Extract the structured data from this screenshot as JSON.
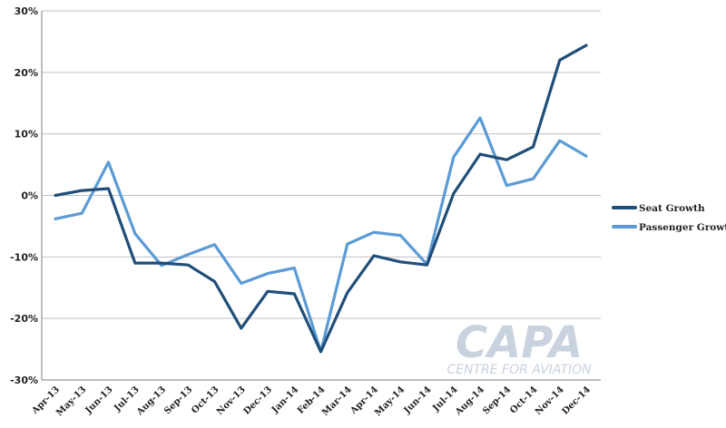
{
  "watermark": {
    "title": "CAPA",
    "subtitle": "CENTRE FOR AVIATION"
  },
  "chart_data": {
    "type": "line",
    "title": "",
    "xlabel": "",
    "ylabel": "",
    "categories": [
      "Apr-13",
      "May-13",
      "Jun-13",
      "Jul-13",
      "Aug-13",
      "Sep-13",
      "Oct-13",
      "Nov-13",
      "Dec-13",
      "Jan-14",
      "Feb-14",
      "Mar-14",
      "Apr-14",
      "May-14",
      "Jun-14",
      "Jul-14",
      "Aug-14",
      "Sep-14",
      "Oct-14",
      "Nov-14",
      "Dec-14"
    ],
    "ylim": [
      -30,
      30
    ],
    "yticks": [
      30,
      20,
      10,
      0,
      -10,
      -20,
      -30
    ],
    "ytick_labels": [
      "30%",
      "20%",
      "10%",
      "0%",
      "-10%",
      "-20%",
      "-30%"
    ],
    "grid": true,
    "legend_position": "right",
    "series": [
      {
        "name": "Seat Growth",
        "color": "#1f4e79",
        "values": [
          0.0,
          0.8,
          1.1,
          -11.0,
          -11.0,
          -11.3,
          -14.0,
          -21.6,
          -15.6,
          -16.0,
          -25.4,
          -15.8,
          -9.8,
          -10.8,
          -11.3,
          0.3,
          6.7,
          5.8,
          7.9,
          22.0,
          24.4
        ]
      },
      {
        "name": "Passenger Growth",
        "color": "#5b9bd5",
        "values": [
          -3.8,
          -2.9,
          5.4,
          -6.2,
          -11.4,
          -9.6,
          -8.0,
          -14.3,
          -12.7,
          -11.8,
          -25.4,
          -7.9,
          -6.0,
          -6.5,
          -11.2,
          6.2,
          12.6,
          1.6,
          2.7,
          8.9,
          6.4
        ]
      }
    ]
  }
}
